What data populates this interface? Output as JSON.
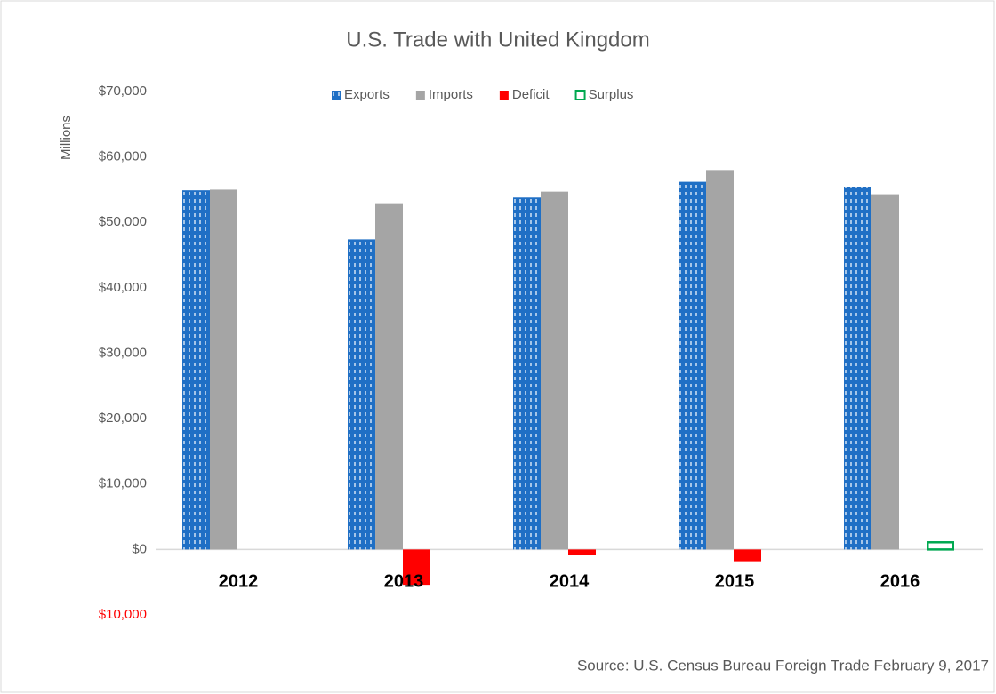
{
  "chart_data": {
    "type": "bar",
    "title": "U.S. Trade with United Kingdom",
    "y_label": "Millions",
    "source": "Source: U.S. Census Bureau Foreign Trade February 9, 2017",
    "categories": [
      "2012",
      "2013",
      "2014",
      "2015",
      "2016"
    ],
    "series": [
      {
        "name": "Exports",
        "color": "#1f6fc5",
        "pattern": "dashed",
        "values": [
          54900,
          47400,
          53800,
          56200,
          55400
        ]
      },
      {
        "name": "Imports",
        "color": "#a5a5a5",
        "values": [
          55000,
          52800,
          54700,
          58000,
          54300
        ]
      },
      {
        "name": "Deficit",
        "color": "#ff0000",
        "values": [
          null,
          -5400,
          -900,
          -1800,
          null
        ]
      },
      {
        "name": "Surplus",
        "color": "#00a850",
        "outline": true,
        "values": [
          null,
          null,
          null,
          null,
          1100
        ]
      }
    ],
    "ylim": [
      -10000,
      70000
    ],
    "yticks": [
      {
        "value": -10000,
        "label": "$10,000"
      },
      {
        "value": 0,
        "label": "$0"
      },
      {
        "value": 10000,
        "label": "$10,000"
      },
      {
        "value": 20000,
        "label": "$20,000"
      },
      {
        "value": 30000,
        "label": "$30,000"
      },
      {
        "value": 40000,
        "label": "$40,000"
      },
      {
        "value": 50000,
        "label": "$50,000"
      },
      {
        "value": 60000,
        "label": "$60,000"
      },
      {
        "value": 70000,
        "label": "$70,000"
      }
    ],
    "negative_tick_color": "#ff0000",
    "grid": false,
    "legend": "top"
  }
}
